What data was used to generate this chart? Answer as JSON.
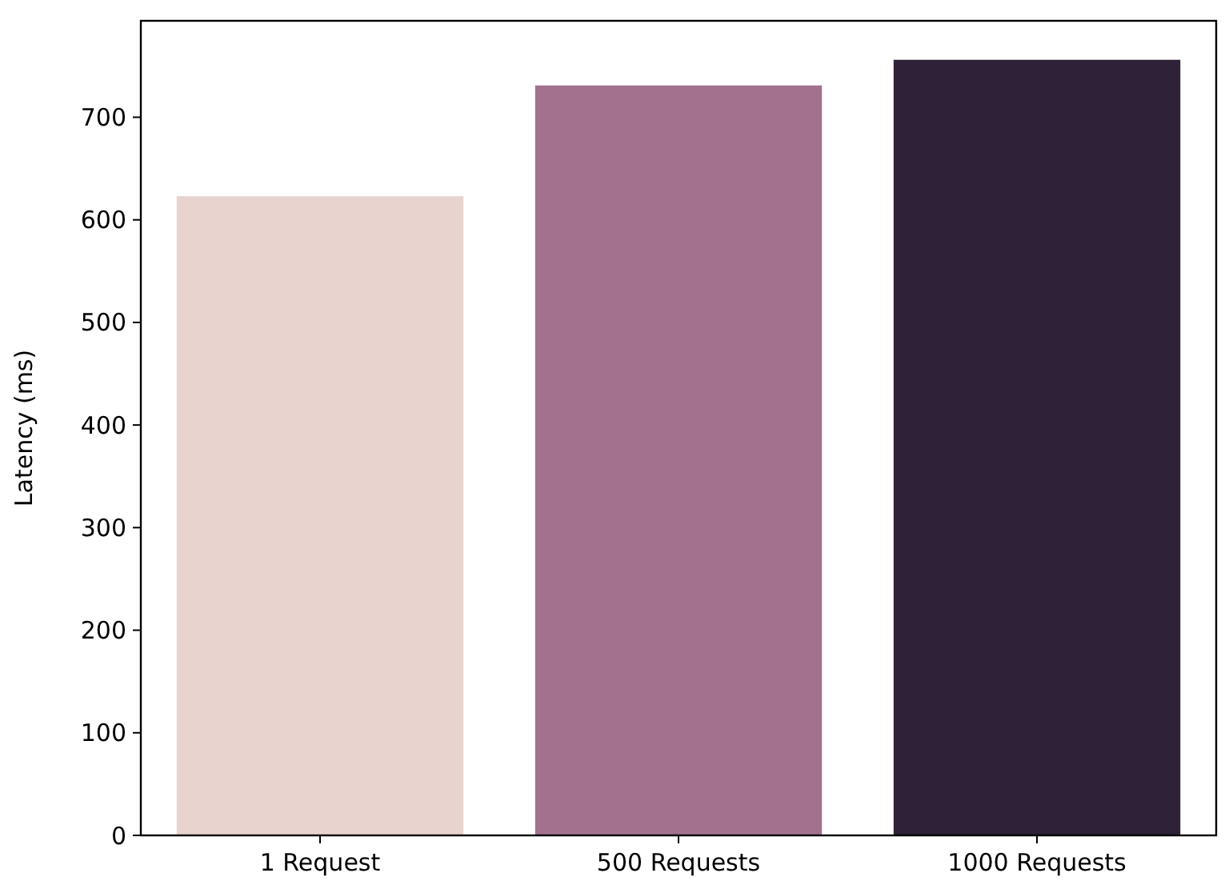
{
  "chart_data": {
    "type": "bar",
    "ylabel": "Latency (ms)",
    "categories": [
      "1 Request",
      "500 Requests",
      "1000 Requests"
    ],
    "values": [
      623,
      731,
      756
    ],
    "colors": [
      "#e8d3cf",
      "#a2718e",
      "#2e2239"
    ],
    "ylim": [
      0,
      794
    ],
    "yticks": [
      0,
      100,
      200,
      300,
      400,
      500,
      600,
      700
    ],
    "grid": false
  }
}
